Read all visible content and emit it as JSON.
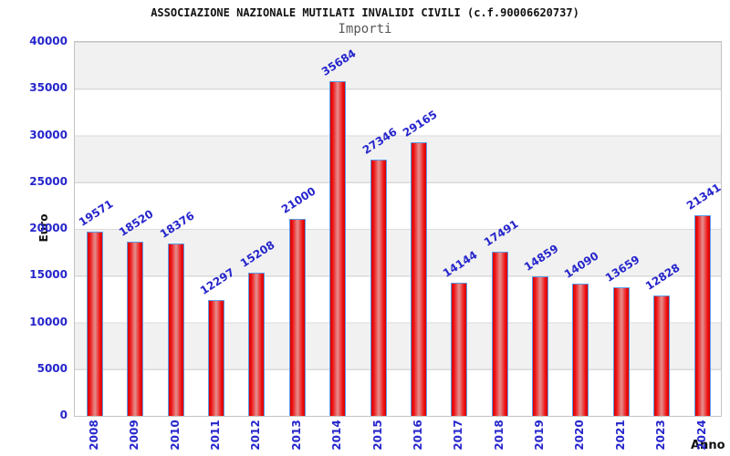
{
  "header": {
    "title": "ASSOCIAZIONE NAZIONALE MUTILATI INVALIDI CIVILI (c.f.90006620737)",
    "subtitle": "Importi"
  },
  "colors": {
    "label_blue": "#2626cc",
    "bar_red_edge": "#ef1212",
    "bar_red_center": "#e59090",
    "bar_border_blue": "#5c9ce6",
    "band_gray": "#f1f1f1",
    "grid_line": "#dadada",
    "plot_border": "#c3c3c3",
    "title_color": "#111111",
    "subtitle_color": "#575757"
  },
  "chart_data": {
    "type": "bar",
    "title": "ASSOCIAZIONE NAZIONALE MUTILATI INVALIDI CIVILI (c.f.90006620737)",
    "subtitle": "Importi",
    "xlabel": "Anno",
    "ylabel": "Euro",
    "categories": [
      "2008",
      "2009",
      "2010",
      "2011",
      "2012",
      "2013",
      "2014",
      "2015",
      "2016",
      "2017",
      "2018",
      "2019",
      "2020",
      "2021",
      "2023",
      "2024"
    ],
    "values": [
      19571,
      18520,
      18376,
      12297,
      15208,
      21000,
      35684,
      27346,
      29165,
      14144,
      17491,
      14859,
      14090,
      13659,
      12828,
      21341
    ],
    "ylim": [
      0,
      40000
    ],
    "ytick_step": 5000,
    "yticks": [
      0,
      5000,
      10000,
      15000,
      20000,
      25000,
      30000,
      35000,
      40000
    ],
    "grid": "horizontal alternating gray/white bands every 5000",
    "legend": "none",
    "bar_value_labels_rotated": true,
    "x_labels_rotated_vertical": true
  }
}
